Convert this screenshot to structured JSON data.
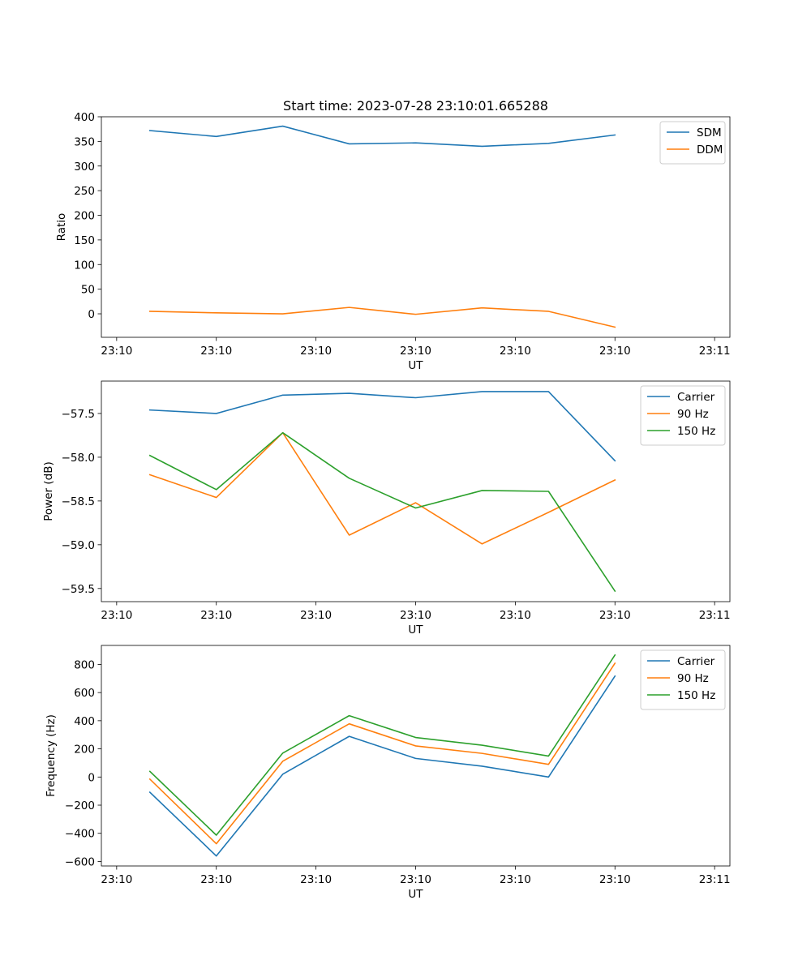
{
  "figure": {
    "title": "Start time: 2023-07-28 23:10:01.665288"
  },
  "colors": {
    "blue": "#1f77b4",
    "orange": "#ff7f0e",
    "green": "#2ca02c"
  },
  "chart_data": [
    {
      "type": "line",
      "title": "Start time: 2023-07-28 23:10:01.665288",
      "xlabel": "UT",
      "ylabel": "Ratio",
      "x": [
        0,
        1,
        2,
        3,
        4,
        5,
        6,
        7
      ],
      "x_tick_values": [
        -0.5,
        1,
        2.5,
        4,
        5.5,
        7,
        8.5
      ],
      "x_tick_labels": [
        "23:10",
        "23:10",
        "23:10",
        "23:10",
        "23:10",
        "23:10",
        "23:11"
      ],
      "xlim": [
        -0.73,
        8.73
      ],
      "ylim": [
        -47.7,
        400
      ],
      "y_ticks": [
        0,
        50,
        100,
        150,
        200,
        250,
        300,
        350,
        400
      ],
      "y_tick_labels": [
        "0",
        "50",
        "100",
        "150",
        "200",
        "250",
        "300",
        "350",
        "400"
      ],
      "legend_position": "upper right",
      "series": [
        {
          "name": "SDM",
          "color": "#1f77b4",
          "values": [
            372,
            360,
            381,
            345,
            347,
            340,
            346,
            363
          ]
        },
        {
          "name": "DDM",
          "color": "#ff7f0e",
          "values": [
            5,
            2,
            0,
            13,
            -1,
            12,
            5,
            -27
          ]
        }
      ]
    },
    {
      "type": "line",
      "xlabel": "UT",
      "ylabel": "Power (dB)",
      "x": [
        0,
        1,
        2,
        3,
        4,
        5,
        6,
        7
      ],
      "x_tick_values": [
        -0.5,
        1,
        2.5,
        4,
        5.5,
        7,
        8.5
      ],
      "x_tick_labels": [
        "23:10",
        "23:10",
        "23:10",
        "23:10",
        "23:10",
        "23:10",
        "23:11"
      ],
      "xlim": [
        -0.73,
        8.73
      ],
      "ylim": [
        -59.65,
        -57.13
      ],
      "y_ticks": [
        -57.5,
        -58.0,
        -58.5,
        -59.0,
        -59.5
      ],
      "y_tick_labels": [
        "−57.5",
        "−58.0",
        "−58.5",
        "−59.0",
        "−59.5"
      ],
      "legend_position": "upper right",
      "series": [
        {
          "name": "Carrier",
          "color": "#1f77b4",
          "values": [
            -57.46,
            -57.5,
            -57.29,
            -57.27,
            -57.32,
            -57.25,
            -57.25,
            -58.04
          ]
        },
        {
          "name": "90 Hz",
          "color": "#ff7f0e",
          "values": [
            -58.2,
            -58.46,
            -57.72,
            -58.89,
            -58.52,
            -58.99,
            -58.63,
            -58.26
          ]
        },
        {
          "name": "150 Hz",
          "color": "#2ca02c",
          "values": [
            -57.98,
            -58.37,
            -57.72,
            -58.24,
            -58.58,
            -58.38,
            -58.39,
            -59.53
          ]
        }
      ]
    },
    {
      "type": "line",
      "xlabel": "UT",
      "ylabel": "Frequency (Hz)",
      "x": [
        0,
        1,
        2,
        3,
        4,
        5,
        6,
        7
      ],
      "x_tick_values": [
        -0.5,
        1,
        2.5,
        4,
        5.5,
        7,
        8.5
      ],
      "x_tick_labels": [
        "23:10",
        "23:10",
        "23:10",
        "23:10",
        "23:10",
        "23:10",
        "23:11"
      ],
      "xlim": [
        -0.73,
        8.73
      ],
      "ylim": [
        -632,
        935
      ],
      "y_ticks": [
        -600,
        -400,
        -200,
        0,
        200,
        400,
        600,
        800
      ],
      "y_tick_labels": [
        "−600",
        "−400",
        "−200",
        "0",
        "200",
        "400",
        "600",
        "800"
      ],
      "legend_position": "upper right",
      "series": [
        {
          "name": "Carrier",
          "color": "#1f77b4",
          "values": [
            -108,
            -561,
            20,
            289,
            132,
            77,
            0,
            717
          ]
        },
        {
          "name": "90 Hz",
          "color": "#ff7f0e",
          "values": [
            -15,
            -474,
            112,
            378,
            221,
            168,
            90,
            808
          ]
        },
        {
          "name": "150 Hz",
          "color": "#2ca02c",
          "values": [
            40,
            -413,
            170,
            436,
            281,
            226,
            149,
            867
          ]
        }
      ]
    }
  ]
}
